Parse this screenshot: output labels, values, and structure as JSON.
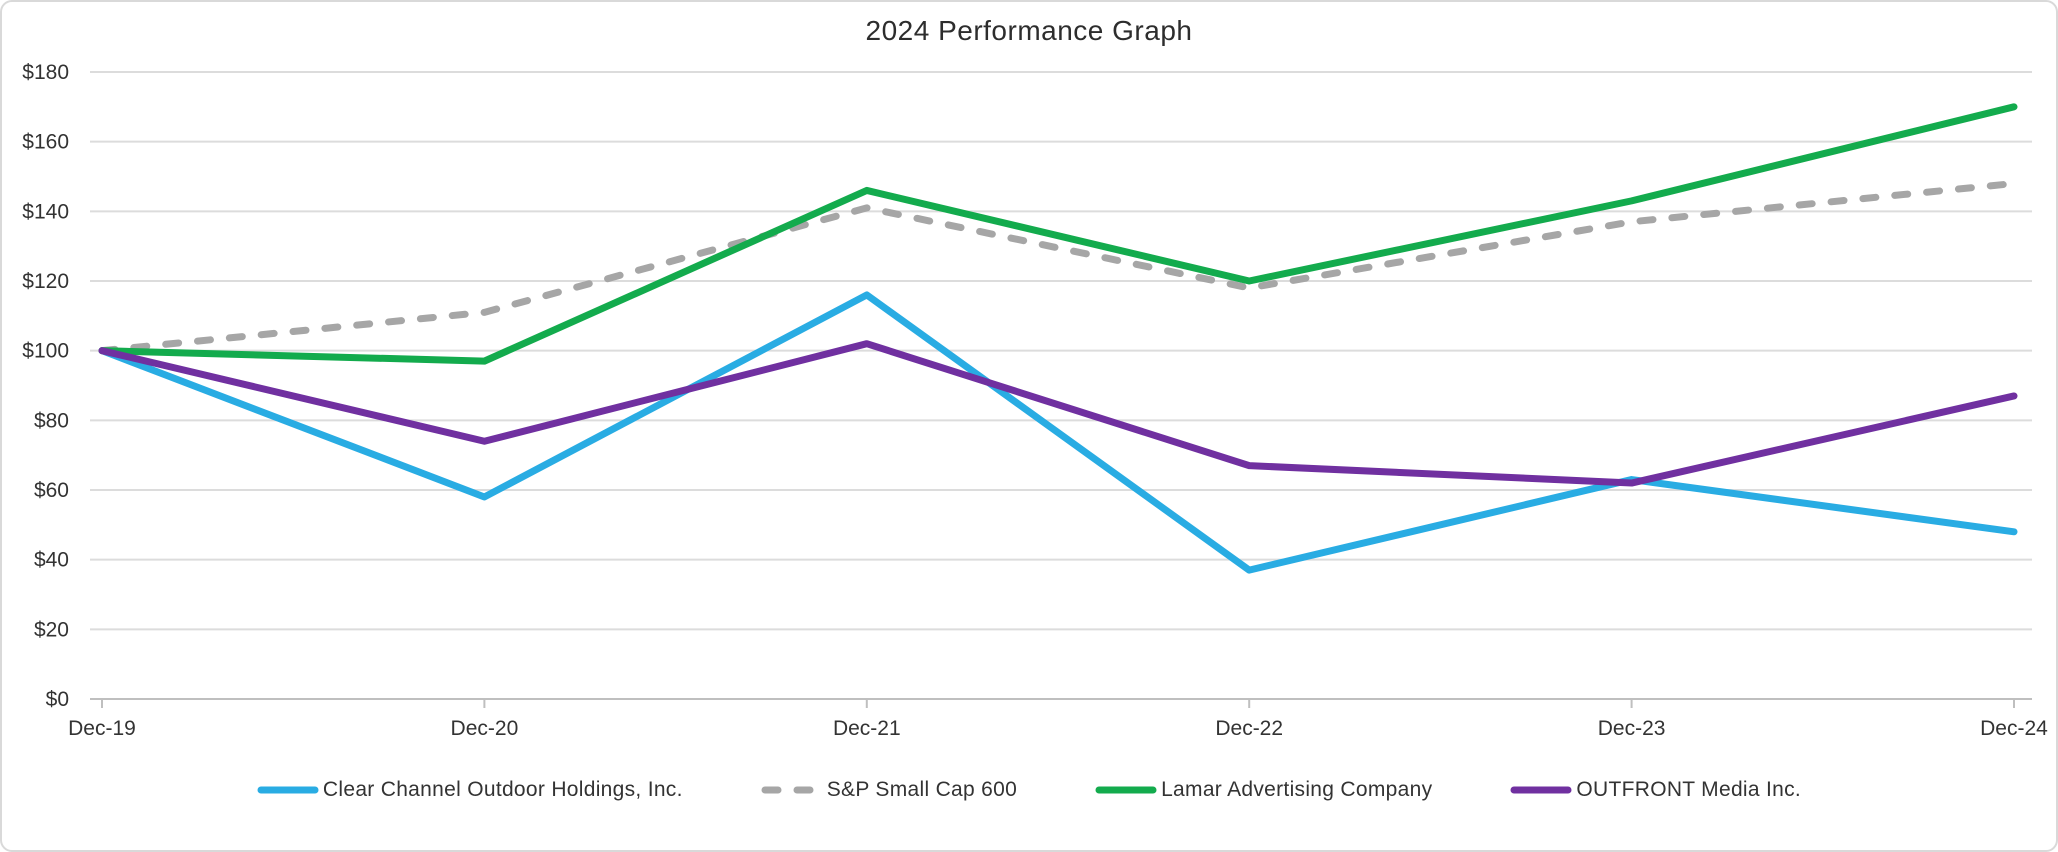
{
  "page": {
    "background": "#ffffff",
    "border_color": "#d9d9d9"
  },
  "chart_data": {
    "type": "line",
    "title": "2024 Performance Graph",
    "categories": [
      "Dec-19",
      "Dec-20",
      "Dec-21",
      "Dec-22",
      "Dec-23",
      "Dec-24"
    ],
    "series": [
      {
        "name": "Clear Channel Outdoor Holdings, Inc.",
        "color": "#29ace3",
        "line_style": "solid",
        "values": [
          100,
          58,
          116,
          37,
          63,
          48
        ]
      },
      {
        "name": "S&P Small Cap 600",
        "color": "#a6a6a6",
        "line_style": "dashed",
        "values": [
          100,
          111,
          141,
          118,
          137,
          148
        ]
      },
      {
        "name": "Lamar Advertising Company",
        "color": "#13ab4d",
        "line_style": "solid",
        "values": [
          100,
          97,
          146,
          120,
          143,
          170
        ]
      },
      {
        "name": "OUTFRONT Media Inc.",
        "color": "#7030a0",
        "line_style": "solid",
        "values": [
          100,
          74,
          102,
          67,
          62,
          87
        ]
      }
    ],
    "y_tick_labels": [
      "$0",
      "$20",
      "$40",
      "$60",
      "$80",
      "$100",
      "$120",
      "$140",
      "$160",
      "$180"
    ],
    "y_tick_values": [
      0,
      20,
      40,
      60,
      80,
      100,
      120,
      140,
      160,
      180
    ],
    "ylim": [
      0,
      180
    ],
    "grid": "horizontal",
    "legend_position": "bottom",
    "gridline_color": "#dcdcdc",
    "axis_color": "#bfbfbf",
    "text_color": "#333333"
  }
}
